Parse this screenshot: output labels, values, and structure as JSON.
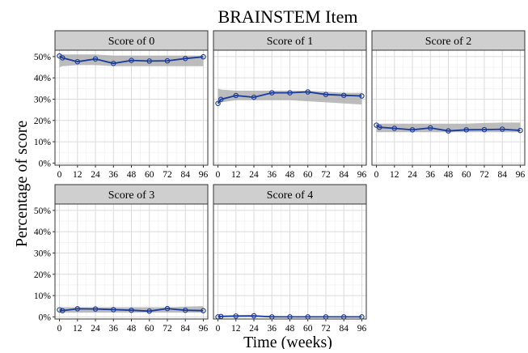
{
  "chart_data": {
    "type": "line",
    "title": "BRAINSTEM Item",
    "xlabel": "Time (weeks)",
    "ylabel": "Percentage of score",
    "x": [
      0,
      2,
      12,
      24,
      36,
      48,
      60,
      72,
      84,
      96
    ],
    "x_ticks": [
      0,
      12,
      24,
      36,
      48,
      60,
      72,
      84,
      96
    ],
    "x_tick_labels": [
      "0",
      "12",
      "24",
      "36",
      "48",
      "60",
      "72",
      "84",
      "96"
    ],
    "xlim": [
      -3,
      99
    ],
    "y_ticks": [
      0,
      10,
      20,
      30,
      40,
      50
    ],
    "y_tick_labels": [
      "0%",
      "10%",
      "20%",
      "30%",
      "40%",
      "50%"
    ],
    "ylim": [
      -1,
      53
    ],
    "grid": true,
    "colors": {
      "line": "#1a3a9c",
      "ribbon": "#a6a6a6",
      "strip_bg": "#cfcfcf",
      "panel_border": "#333333",
      "grid_major": "#dcdcdc",
      "grid_minor": "#efefef"
    },
    "panels": [
      {
        "label": "Score of 0",
        "y": [
          50.3,
          49.4,
          47.6,
          48.9,
          46.8,
          48.2,
          47.9,
          48.0,
          49.1,
          49.9
        ],
        "ribbon_low": [
          45.0,
          45.5,
          46.0,
          46.0,
          45.5,
          45.5,
          45.5,
          45.5,
          45.5,
          45.5
        ],
        "ribbon_high": [
          51.0,
          51.0,
          51.0,
          51.0,
          50.5,
          50.5,
          50.5,
          50.5,
          50.5,
          50.5
        ]
      },
      {
        "label": "Score of 1",
        "y": [
          28.0,
          29.9,
          31.7,
          30.9,
          33.0,
          33.0,
          33.4,
          32.2,
          31.8,
          31.5
        ],
        "ribbon_low": [
          27.5,
          28.5,
          29.5,
          29.5,
          29.5,
          29.5,
          29.0,
          28.5,
          28.0,
          27.5
        ],
        "ribbon_high": [
          35.0,
          34.5,
          34.0,
          34.0,
          34.0,
          34.0,
          34.0,
          33.5,
          33.0,
          33.0
        ]
      },
      {
        "label": "Score of 2",
        "y": [
          17.8,
          16.8,
          16.3,
          15.6,
          16.5,
          15.1,
          15.6,
          15.7,
          15.9,
          15.3
        ],
        "ribbon_low": [
          14.5,
          14.5,
          14.5,
          14.5,
          14.5,
          14.5,
          14.5,
          14.5,
          14.5,
          14.5
        ],
        "ribbon_high": [
          18.5,
          18.5,
          18.5,
          18.5,
          18.5,
          18.5,
          18.5,
          18.8,
          19.0,
          19.0
        ]
      },
      {
        "label": "Score of 3",
        "y": [
          3.3,
          2.9,
          3.8,
          3.7,
          3.4,
          3.1,
          2.7,
          3.9,
          3.1,
          2.9
        ],
        "ribbon_low": [
          2.0,
          2.0,
          2.0,
          2.0,
          2.0,
          2.0,
          2.0,
          2.0,
          2.0,
          2.0
        ],
        "ribbon_high": [
          4.5,
          4.5,
          4.5,
          4.5,
          4.5,
          4.5,
          4.5,
          4.5,
          4.8,
          5.0
        ]
      },
      {
        "label": "Score of 4",
        "y": [
          0.0,
          0.2,
          0.4,
          0.5,
          0.0,
          0.0,
          0.0,
          0.0,
          0.0,
          0.0
        ],
        "ribbon_low": [
          0.0,
          0.0,
          0.0,
          0.0,
          0.0,
          0.0,
          0.0,
          0.0,
          0.0,
          0.0
        ],
        "ribbon_high": [
          0.4,
          0.5,
          0.7,
          0.7,
          0.4,
          0.3,
          0.3,
          0.3,
          0.3,
          0.3
        ]
      }
    ]
  }
}
